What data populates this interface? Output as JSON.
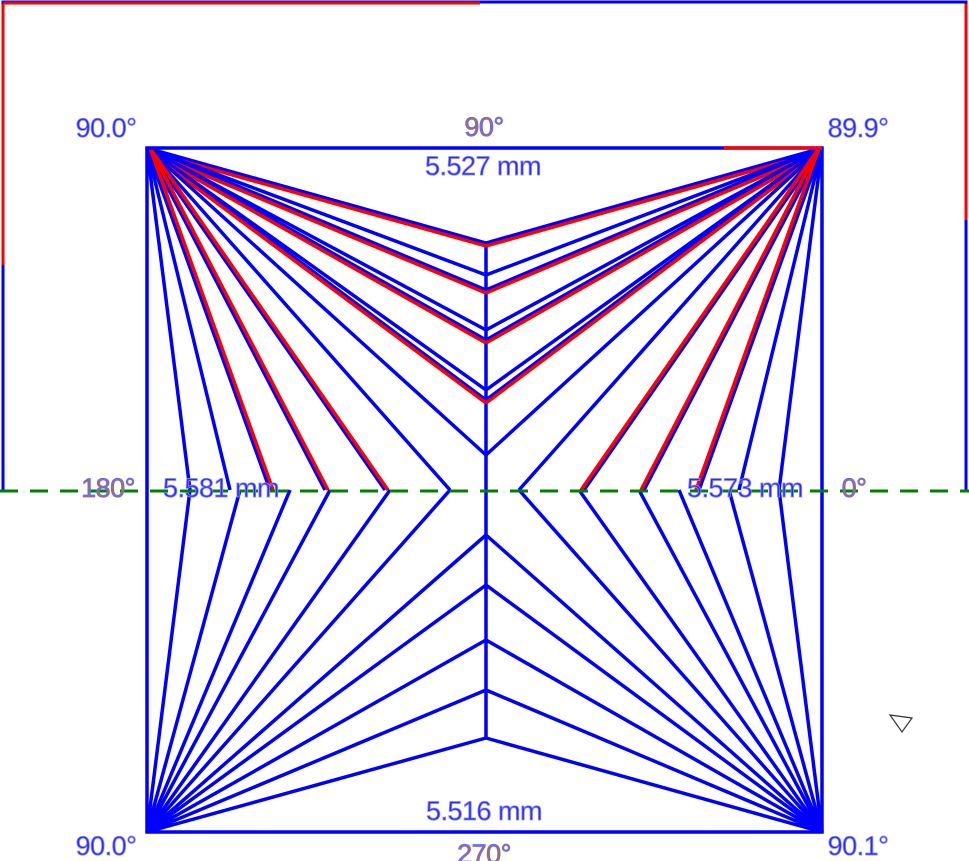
{
  "corner_angles": {
    "top_left": "90.0°",
    "top_right": "89.9°",
    "bottom_left": "90.0°",
    "bottom_right": "90.1°"
  },
  "directions": {
    "top": "90°",
    "left": "180°",
    "right": "0°",
    "bottom": "270°"
  },
  "side_lengths": {
    "top": "5.527 mm",
    "left": "5.581 mm",
    "right": "5.573 mm",
    "bottom": "5.516 mm"
  }
}
